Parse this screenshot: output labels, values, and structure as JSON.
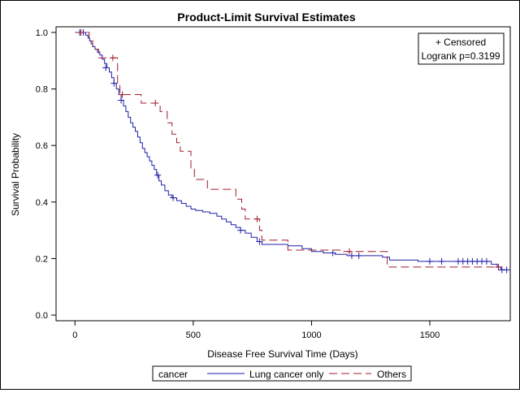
{
  "chart_data": {
    "type": "line",
    "subtype": "kaplan-meier-step",
    "title": "Product-Limit Survival Estimates",
    "xlabel": "Disease Free Survival Time (Days)",
    "ylabel": "Survival Probability",
    "xlim": [
      -80,
      1840
    ],
    "ylim": [
      -0.02,
      1.02
    ],
    "xticks": [
      0,
      500,
      1000,
      1500
    ],
    "yticks": [
      0.0,
      0.2,
      0.4,
      0.6,
      0.8,
      1.0
    ],
    "ytick_labels": [
      "0.0",
      "0.2",
      "0.4",
      "0.6",
      "0.8",
      "1.0"
    ],
    "grid": false,
    "annotation": {
      "position": "top-right",
      "lines": [
        "+ Censored",
        "Logrank p=0.3199"
      ]
    },
    "legend": {
      "position": "bottom",
      "title": "cancer",
      "entries": [
        "Lung cancer only",
        "Others"
      ]
    },
    "series": [
      {
        "name": "Lung cancer only",
        "color": "#1f1fa8",
        "style": "solid",
        "steps": [
          [
            0,
            1.0
          ],
          [
            45,
            0.99
          ],
          [
            55,
            0.98
          ],
          [
            62,
            0.97
          ],
          [
            68,
            0.96
          ],
          [
            75,
            0.95
          ],
          [
            85,
            0.94
          ],
          [
            95,
            0.93
          ],
          [
            105,
            0.92
          ],
          [
            115,
            0.905
          ],
          [
            125,
            0.89
          ],
          [
            135,
            0.875
          ],
          [
            145,
            0.86
          ],
          [
            155,
            0.84
          ],
          [
            165,
            0.82
          ],
          [
            175,
            0.8
          ],
          [
            185,
            0.78
          ],
          [
            195,
            0.76
          ],
          [
            205,
            0.74
          ],
          [
            215,
            0.72
          ],
          [
            225,
            0.7
          ],
          [
            235,
            0.68
          ],
          [
            245,
            0.665
          ],
          [
            255,
            0.65
          ],
          [
            265,
            0.63
          ],
          [
            275,
            0.61
          ],
          [
            285,
            0.59
          ],
          [
            295,
            0.575
          ],
          [
            305,
            0.56
          ],
          [
            315,
            0.545
          ],
          [
            325,
            0.53
          ],
          [
            335,
            0.515
          ],
          [
            345,
            0.495
          ],
          [
            355,
            0.475
          ],
          [
            365,
            0.46
          ],
          [
            380,
            0.44
          ],
          [
            395,
            0.425
          ],
          [
            410,
            0.415
          ],
          [
            430,
            0.405
          ],
          [
            450,
            0.395
          ],
          [
            470,
            0.385
          ],
          [
            490,
            0.375
          ],
          [
            510,
            0.37
          ],
          [
            540,
            0.365
          ],
          [
            570,
            0.36
          ],
          [
            600,
            0.35
          ],
          [
            620,
            0.34
          ],
          [
            640,
            0.33
          ],
          [
            660,
            0.32
          ],
          [
            680,
            0.31
          ],
          [
            700,
            0.3
          ],
          [
            720,
            0.29
          ],
          [
            745,
            0.275
          ],
          [
            770,
            0.26
          ],
          [
            790,
            0.25
          ],
          [
            900,
            0.245
          ],
          [
            960,
            0.235
          ],
          [
            1000,
            0.225
          ],
          [
            1050,
            0.22
          ],
          [
            1100,
            0.215
          ],
          [
            1150,
            0.21
          ],
          [
            1300,
            0.205
          ],
          [
            1330,
            0.195
          ],
          [
            1450,
            0.19
          ],
          [
            1760,
            0.18
          ],
          [
            1785,
            0.17
          ],
          [
            1800,
            0.16
          ],
          [
            1820,
            0.16
          ]
        ],
        "censored": [
          [
            20,
            1.0
          ],
          [
            35,
            1.0
          ],
          [
            130,
            0.875
          ],
          [
            165,
            0.82
          ],
          [
            195,
            0.76
          ],
          [
            350,
            0.495
          ],
          [
            415,
            0.415
          ],
          [
            700,
            0.3
          ],
          [
            780,
            0.26
          ],
          [
            1090,
            0.22
          ],
          [
            1170,
            0.21
          ],
          [
            1200,
            0.21
          ],
          [
            1500,
            0.19
          ],
          [
            1550,
            0.19
          ],
          [
            1620,
            0.19
          ],
          [
            1640,
            0.19
          ],
          [
            1660,
            0.19
          ],
          [
            1680,
            0.19
          ],
          [
            1700,
            0.19
          ],
          [
            1720,
            0.19
          ],
          [
            1740,
            0.19
          ],
          [
            1790,
            0.17
          ],
          [
            1805,
            0.16
          ],
          [
            1825,
            0.16
          ]
        ]
      },
      {
        "name": "Others",
        "color": "#a01c2c",
        "style": "dashed",
        "steps": [
          [
            0,
            1.0
          ],
          [
            60,
            0.97
          ],
          [
            75,
            0.94
          ],
          [
            100,
            0.91
          ],
          [
            180,
            0.82
          ],
          [
            190,
            0.78
          ],
          [
            280,
            0.75
          ],
          [
            360,
            0.72
          ],
          [
            390,
            0.68
          ],
          [
            410,
            0.64
          ],
          [
            430,
            0.61
          ],
          [
            445,
            0.58
          ],
          [
            490,
            0.52
          ],
          [
            505,
            0.48
          ],
          [
            560,
            0.445
          ],
          [
            680,
            0.41
          ],
          [
            705,
            0.375
          ],
          [
            720,
            0.34
          ],
          [
            780,
            0.3
          ],
          [
            790,
            0.265
          ],
          [
            900,
            0.23
          ],
          [
            1130,
            0.225
          ],
          [
            1320,
            0.17
          ],
          [
            1780,
            0.17
          ]
        ],
        "censored": [
          [
            25,
            1.0
          ],
          [
            160,
            0.91
          ],
          [
            200,
            0.78
          ],
          [
            340,
            0.75
          ],
          [
            770,
            0.34
          ],
          [
            1160,
            0.225
          ],
          [
            1790,
            0.17
          ]
        ]
      }
    ]
  }
}
